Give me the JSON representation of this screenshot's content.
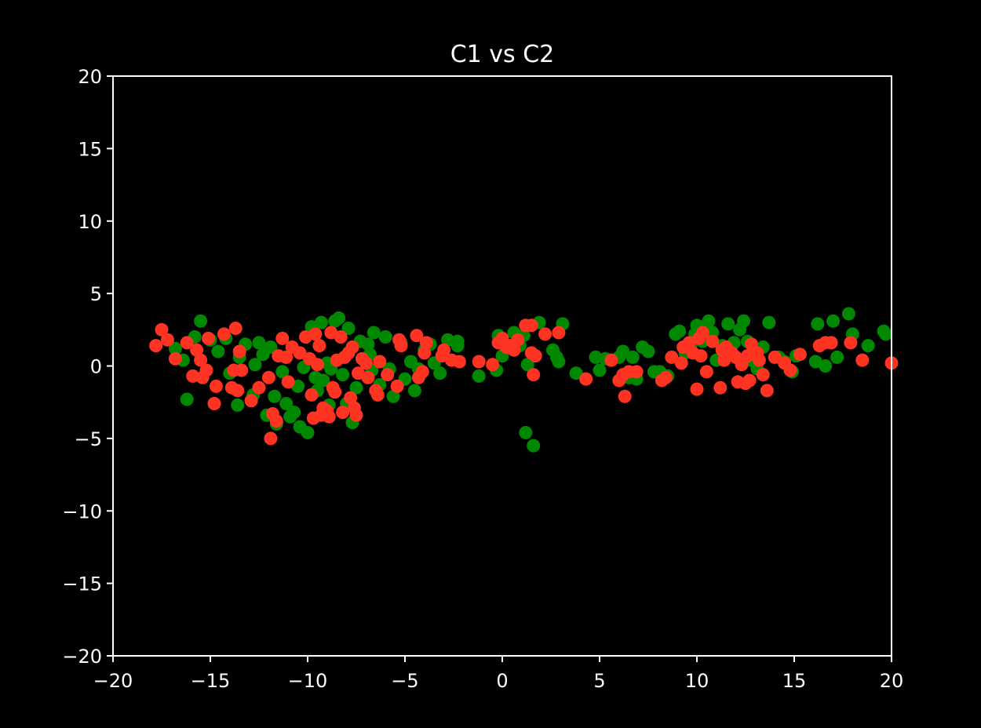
{
  "chart_data": {
    "type": "scatter",
    "title": "C1 vs C2",
    "xlabel": "",
    "ylabel": "",
    "xlim": [
      -20,
      20
    ],
    "ylim": [
      -20,
      20
    ],
    "x_ticks": [
      -20,
      -15,
      -10,
      -5,
      0,
      5,
      10,
      15,
      20
    ],
    "y_ticks": [
      -20,
      -15,
      -10,
      -5,
      0,
      5,
      10,
      15,
      20
    ],
    "x_tick_labels": [
      "−20",
      "−15",
      "−10",
      "−5",
      "0",
      "5",
      "10",
      "15",
      "20"
    ],
    "y_tick_labels": [
      "−20",
      "−15",
      "−10",
      "−5",
      "0",
      "5",
      "10",
      "15",
      "20"
    ],
    "grid": false,
    "background": "#000000",
    "axis_color": "#ffffff",
    "series": [
      {
        "color": "#008800",
        "points": [
          [
            -16.2,
            -2.3
          ],
          [
            -15.5,
            3.1
          ],
          [
            -15.8,
            2.0
          ],
          [
            -15.0,
            1.8
          ],
          [
            -14.6,
            1.0
          ],
          [
            -14.2,
            1.9
          ],
          [
            -13.6,
            -2.7
          ],
          [
            -13.5,
            0.6
          ],
          [
            -13.2,
            1.5
          ],
          [
            -12.8,
            -2.0
          ],
          [
            -12.7,
            0.1
          ],
          [
            -12.5,
            1.6
          ],
          [
            -12.1,
            -3.4
          ],
          [
            -11.9,
            1.3
          ],
          [
            -11.7,
            -2.1
          ],
          [
            -11.6,
            -4.0
          ],
          [
            -11.3,
            -0.4
          ],
          [
            -11.1,
            -2.6
          ],
          [
            -10.9,
            -3.5
          ],
          [
            -10.7,
            -3.2
          ],
          [
            -10.4,
            -4.2
          ],
          [
            -10.2,
            -0.1
          ],
          [
            -10.0,
            -4.6
          ],
          [
            -9.8,
            2.7
          ],
          [
            -9.6,
            -0.8
          ],
          [
            -9.5,
            -1.7
          ],
          [
            -9.3,
            3.0
          ],
          [
            -9.2,
            -1.0
          ],
          [
            -8.9,
            -2.7
          ],
          [
            -8.8,
            -0.2
          ],
          [
            -8.6,
            3.1
          ],
          [
            -8.4,
            3.3
          ],
          [
            -8.2,
            -0.6
          ],
          [
            -7.9,
            2.6
          ],
          [
            -7.7,
            -3.9
          ],
          [
            -7.5,
            -1.5
          ],
          [
            -7.3,
            1.7
          ],
          [
            -7.1,
            0.4
          ],
          [
            -6.9,
            1.5
          ],
          [
            -6.7,
            -0.3
          ],
          [
            -6.6,
            2.3
          ],
          [
            -6.3,
            -1.3
          ],
          [
            -6.0,
            2.0
          ],
          [
            -5.8,
            -0.2
          ],
          [
            -5.6,
            -2.1
          ],
          [
            -5.2,
            1.6
          ],
          [
            -5.0,
            -0.9
          ],
          [
            -4.7,
            0.3
          ],
          [
            -4.5,
            -1.7
          ],
          [
            -4.3,
            -0.2
          ],
          [
            -4.0,
            1.1
          ],
          [
            -3.7,
            1.5
          ],
          [
            -3.2,
            -0.5
          ],
          [
            -2.8,
            1.8
          ],
          [
            -2.3,
            1.7
          ],
          [
            -2.3,
            1.4
          ],
          [
            -1.2,
            -0.7
          ],
          [
            -0.3,
            -0.3
          ],
          [
            -0.2,
            2.1
          ],
          [
            0.0,
            0.7
          ],
          [
            0.5,
            1.3
          ],
          [
            0.6,
            2.3
          ],
          [
            0.9,
            1.4
          ],
          [
            1.1,
            2.1
          ],
          [
            1.2,
            -4.6
          ],
          [
            1.3,
            0.1
          ],
          [
            1.6,
            -5.5
          ],
          [
            1.9,
            3.0
          ],
          [
            2.6,
            1.1
          ],
          [
            2.8,
            0.6
          ],
          [
            2.9,
            0.3
          ],
          [
            3.1,
            2.9
          ],
          [
            3.8,
            -0.5
          ],
          [
            4.8,
            0.6
          ],
          [
            5.0,
            -0.3
          ],
          [
            5.3,
            0.5
          ],
          [
            6.0,
            0.6
          ],
          [
            6.2,
            1.0
          ],
          [
            6.5,
            -0.8
          ],
          [
            6.7,
            0.6
          ],
          [
            6.9,
            -0.9
          ],
          [
            7.2,
            1.3
          ],
          [
            7.5,
            1.0
          ],
          [
            7.8,
            -0.4
          ],
          [
            8.1,
            -0.4
          ],
          [
            8.5,
            -0.7
          ],
          [
            8.9,
            2.2
          ],
          [
            9.1,
            2.4
          ],
          [
            9.4,
            0.9
          ],
          [
            9.7,
            1.5
          ],
          [
            9.9,
            2.2
          ],
          [
            10.0,
            2.8
          ],
          [
            10.3,
            1.7
          ],
          [
            10.6,
            3.1
          ],
          [
            10.8,
            2.3
          ],
          [
            11.0,
            0.4
          ],
          [
            11.3,
            1.4
          ],
          [
            11.6,
            2.9
          ],
          [
            11.9,
            1.6
          ],
          [
            12.2,
            2.5
          ],
          [
            12.4,
            3.1
          ],
          [
            12.6,
            1.7
          ],
          [
            12.8,
            0.4
          ],
          [
            13.1,
            -0.2
          ],
          [
            13.4,
            1.3
          ],
          [
            13.7,
            3.0
          ],
          [
            14.2,
            0.6
          ],
          [
            14.5,
            0.3
          ],
          [
            14.9,
            -0.4
          ],
          [
            15.1,
            0.7
          ],
          [
            16.1,
            0.3
          ],
          [
            16.2,
            2.9
          ],
          [
            16.6,
            0.0
          ],
          [
            16.9,
            1.6
          ],
          [
            17.0,
            3.1
          ],
          [
            17.2,
            0.6
          ],
          [
            17.8,
            3.6
          ],
          [
            18.0,
            2.2
          ],
          [
            18.8,
            1.4
          ],
          [
            19.6,
            2.4
          ],
          [
            19.7,
            2.2
          ],
          [
            -16.8,
            1.2
          ],
          [
            -16.4,
            0.4
          ],
          [
            -14.0,
            -0.5
          ],
          [
            -12.3,
            0.8
          ],
          [
            -10.5,
            -1.4
          ],
          [
            -9.0,
            0.2
          ],
          [
            -8.0,
            -2.6
          ],
          [
            -6.8,
            0.8
          ],
          [
            -3.5,
            0.2
          ]
        ]
      },
      {
        "color": "#ff3322",
        "points": [
          [
            -17.8,
            1.4
          ],
          [
            -17.5,
            2.5
          ],
          [
            -17.2,
            1.8
          ],
          [
            -16.8,
            0.5
          ],
          [
            -16.2,
            1.6
          ],
          [
            -15.9,
            -0.7
          ],
          [
            -15.7,
            1.1
          ],
          [
            -15.5,
            0.4
          ],
          [
            -15.4,
            -0.8
          ],
          [
            -15.2,
            -0.3
          ],
          [
            -15.1,
            1.9
          ],
          [
            -14.8,
            -2.6
          ],
          [
            -14.7,
            -1.4
          ],
          [
            -14.3,
            2.2
          ],
          [
            -13.9,
            -1.5
          ],
          [
            -13.8,
            -0.3
          ],
          [
            -13.7,
            2.6
          ],
          [
            -13.6,
            -1.7
          ],
          [
            -13.5,
            1.0
          ],
          [
            -13.4,
            -0.3
          ],
          [
            -12.9,
            -2.4
          ],
          [
            -12.5,
            -1.5
          ],
          [
            -12.0,
            -0.8
          ],
          [
            -11.9,
            -5.0
          ],
          [
            -11.8,
            -3.3
          ],
          [
            -11.6,
            -3.8
          ],
          [
            -11.5,
            0.7
          ],
          [
            -11.3,
            1.9
          ],
          [
            -11.1,
            0.6
          ],
          [
            -11.0,
            -1.1
          ],
          [
            -10.8,
            1.3
          ],
          [
            -10.4,
            0.9
          ],
          [
            -10.1,
            2.0
          ],
          [
            -9.9,
            0.5
          ],
          [
            -9.8,
            -2.0
          ],
          [
            -9.7,
            -3.6
          ],
          [
            -9.6,
            2.2
          ],
          [
            -9.5,
            0.1
          ],
          [
            -9.4,
            1.4
          ],
          [
            -9.3,
            -3.4
          ],
          [
            -9.2,
            -2.9
          ],
          [
            -9.0,
            -3.1
          ],
          [
            -8.9,
            -3.5
          ],
          [
            -8.8,
            2.3
          ],
          [
            -8.7,
            -1.5
          ],
          [
            -8.6,
            -1.8
          ],
          [
            -8.5,
            0.4
          ],
          [
            -8.3,
            2.0
          ],
          [
            -8.2,
            -3.2
          ],
          [
            -8.1,
            0.6
          ],
          [
            -7.9,
            0.9
          ],
          [
            -7.8,
            -2.2
          ],
          [
            -7.7,
            1.3
          ],
          [
            -7.6,
            -2.9
          ],
          [
            -7.5,
            -3.4
          ],
          [
            -7.4,
            -0.5
          ],
          [
            -7.2,
            0.5
          ],
          [
            -7.0,
            0.2
          ],
          [
            -6.9,
            -0.8
          ],
          [
            -6.5,
            -1.7
          ],
          [
            -6.4,
            -2.0
          ],
          [
            -6.3,
            0.3
          ],
          [
            -5.9,
            -0.6
          ],
          [
            -5.4,
            -1.4
          ],
          [
            -5.3,
            1.8
          ],
          [
            -5.2,
            1.4
          ],
          [
            -4.4,
            2.1
          ],
          [
            -4.3,
            -0.8
          ],
          [
            -4.1,
            -0.4
          ],
          [
            -4.0,
            0.9
          ],
          [
            -3.9,
            1.6
          ],
          [
            -3.1,
            0.7
          ],
          [
            -3.0,
            1.1
          ],
          [
            -2.6,
            0.4
          ],
          [
            -2.2,
            0.3
          ],
          [
            -1.2,
            0.3
          ],
          [
            -0.5,
            0.1
          ],
          [
            -0.2,
            1.6
          ],
          [
            0.0,
            1.9
          ],
          [
            0.2,
            1.3
          ],
          [
            0.4,
            1.4
          ],
          [
            0.6,
            1.1
          ],
          [
            0.8,
            1.8
          ],
          [
            1.2,
            2.8
          ],
          [
            1.5,
            0.9
          ],
          [
            1.5,
            2.8
          ],
          [
            1.6,
            -0.6
          ],
          [
            1.7,
            0.7
          ],
          [
            2.2,
            2.2
          ],
          [
            2.9,
            2.3
          ],
          [
            4.3,
            -0.9
          ],
          [
            5.6,
            0.4
          ],
          [
            6.0,
            -1.0
          ],
          [
            6.2,
            -0.6
          ],
          [
            6.3,
            -2.1
          ],
          [
            6.5,
            -0.4
          ],
          [
            6.9,
            -0.4
          ],
          [
            8.2,
            -1.0
          ],
          [
            8.4,
            -0.8
          ],
          [
            8.7,
            0.6
          ],
          [
            9.2,
            0.2
          ],
          [
            9.3,
            1.3
          ],
          [
            9.6,
            1.6
          ],
          [
            9.8,
            0.9
          ],
          [
            10.0,
            -1.6
          ],
          [
            10.1,
            1.9
          ],
          [
            10.2,
            0.7
          ],
          [
            10.3,
            2.3
          ],
          [
            10.5,
            -0.4
          ],
          [
            10.8,
            1.7
          ],
          [
            11.2,
            -1.5
          ],
          [
            11.3,
            1.1
          ],
          [
            11.4,
            0.4
          ],
          [
            11.5,
            1.3
          ],
          [
            11.8,
            0.9
          ],
          [
            12.0,
            0.6
          ],
          [
            12.1,
            -1.1
          ],
          [
            12.3,
            0.1
          ],
          [
            12.5,
            -1.2
          ],
          [
            12.6,
            0.7
          ],
          [
            12.7,
            -1.0
          ],
          [
            12.8,
            1.5
          ],
          [
            13.1,
            0.9
          ],
          [
            13.2,
            0.4
          ],
          [
            13.4,
            -0.6
          ],
          [
            13.6,
            -1.7
          ],
          [
            14.0,
            0.6
          ],
          [
            14.5,
            0.2
          ],
          [
            14.8,
            -0.3
          ],
          [
            15.3,
            0.8
          ],
          [
            16.3,
            1.4
          ],
          [
            16.6,
            1.6
          ],
          [
            16.9,
            1.6
          ],
          [
            17.9,
            1.6
          ],
          [
            18.5,
            0.4
          ],
          [
            20.0,
            0.2
          ]
        ]
      }
    ]
  }
}
